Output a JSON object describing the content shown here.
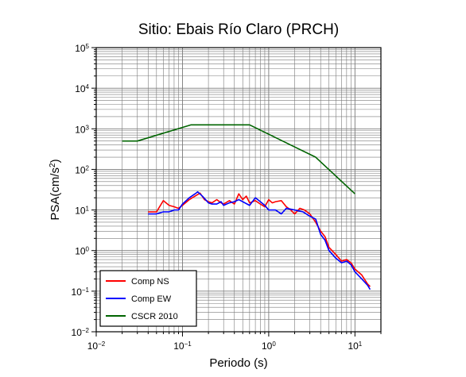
{
  "chart_data": {
    "type": "line",
    "title": "Sitio: Ebais Río Claro (PRCH)",
    "xlabel": "Periodo (s)",
    "ylabel_main": "PSA(cm/s",
    "ylabel_sup": "2",
    "ylabel_close": ")",
    "xscale": "log",
    "yscale": "log",
    "xlim": [
      0.01,
      20
    ],
    "ylim": [
      0.01,
      100000
    ],
    "grid": true,
    "legend_position": "bottom-left",
    "x_ticks": [
      {
        "base": "10",
        "exp": "−2",
        "value": 0.01
      },
      {
        "base": "10",
        "exp": "−1",
        "value": 0.1
      },
      {
        "base": "10",
        "exp": "0",
        "value": 1
      },
      {
        "base": "10",
        "exp": "1",
        "value": 10
      }
    ],
    "y_ticks": [
      {
        "base": "10",
        "exp": "−2",
        "value": 0.01
      },
      {
        "base": "10",
        "exp": "−1",
        "value": 0.1
      },
      {
        "base": "10",
        "exp": "0",
        "value": 1
      },
      {
        "base": "10",
        "exp": "1",
        "value": 10
      },
      {
        "base": "10",
        "exp": "2",
        "value": 100
      },
      {
        "base": "10",
        "exp": "3",
        "value": 1000
      },
      {
        "base": "10",
        "exp": "4",
        "value": 10000
      },
      {
        "base": "10",
        "exp": "5",
        "value": 100000
      }
    ],
    "series": [
      {
        "name": "Comp NS",
        "color": "#ff0000",
        "points": [
          [
            0.04,
            9
          ],
          [
            0.05,
            9
          ],
          [
            0.06,
            17
          ],
          [
            0.07,
            13
          ],
          [
            0.08,
            12
          ],
          [
            0.09,
            11
          ],
          [
            0.1,
            13
          ],
          [
            0.12,
            18
          ],
          [
            0.14,
            22
          ],
          [
            0.16,
            26
          ],
          [
            0.18,
            18
          ],
          [
            0.2,
            16
          ],
          [
            0.22,
            15
          ],
          [
            0.25,
            18
          ],
          [
            0.28,
            15
          ],
          [
            0.3,
            14
          ],
          [
            0.35,
            17
          ],
          [
            0.4,
            14
          ],
          [
            0.45,
            25
          ],
          [
            0.5,
            18
          ],
          [
            0.55,
            22
          ],
          [
            0.6,
            15
          ],
          [
            0.7,
            17
          ],
          [
            0.8,
            14
          ],
          [
            0.9,
            12
          ],
          [
            1.0,
            18
          ],
          [
            1.1,
            15
          ],
          [
            1.2,
            16
          ],
          [
            1.4,
            17
          ],
          [
            1.6,
            12
          ],
          [
            1.8,
            10
          ],
          [
            2.0,
            8
          ],
          [
            2.3,
            11
          ],
          [
            2.6,
            10
          ],
          [
            3.0,
            8
          ],
          [
            3.5,
            5
          ],
          [
            4.0,
            3
          ],
          [
            4.5,
            2.2
          ],
          [
            5.0,
            1.2
          ],
          [
            6.0,
            0.8
          ],
          [
            7.0,
            0.55
          ],
          [
            8.0,
            0.6
          ],
          [
            9.0,
            0.5
          ],
          [
            10,
            0.35
          ],
          [
            12,
            0.25
          ],
          [
            14,
            0.15
          ],
          [
            15,
            0.13
          ]
        ]
      },
      {
        "name": "Comp EW",
        "color": "#0000ff",
        "points": [
          [
            0.04,
            8
          ],
          [
            0.05,
            8
          ],
          [
            0.06,
            9
          ],
          [
            0.07,
            9
          ],
          [
            0.08,
            10
          ],
          [
            0.09,
            10
          ],
          [
            0.1,
            14
          ],
          [
            0.12,
            20
          ],
          [
            0.14,
            25
          ],
          [
            0.15,
            28
          ],
          [
            0.17,
            22
          ],
          [
            0.2,
            15
          ],
          [
            0.22,
            14
          ],
          [
            0.25,
            14
          ],
          [
            0.28,
            16
          ],
          [
            0.3,
            13
          ],
          [
            0.35,
            15
          ],
          [
            0.4,
            16
          ],
          [
            0.45,
            18
          ],
          [
            0.5,
            16
          ],
          [
            0.6,
            13
          ],
          [
            0.7,
            20
          ],
          [
            0.8,
            16
          ],
          [
            0.9,
            13
          ],
          [
            1.0,
            10
          ],
          [
            1.2,
            10
          ],
          [
            1.4,
            8
          ],
          [
            1.6,
            11
          ],
          [
            2.0,
            10
          ],
          [
            2.5,
            9
          ],
          [
            3.0,
            7
          ],
          [
            3.5,
            6
          ],
          [
            4.0,
            2.5
          ],
          [
            4.5,
            1.8
          ],
          [
            5.0,
            1.0
          ],
          [
            6.0,
            0.65
          ],
          [
            7.0,
            0.5
          ],
          [
            8.0,
            0.55
          ],
          [
            9.0,
            0.45
          ],
          [
            10,
            0.3
          ],
          [
            12,
            0.2
          ],
          [
            14,
            0.14
          ],
          [
            15,
            0.11
          ]
        ]
      },
      {
        "name": "CSCR 2010",
        "color": "#006400",
        "points": [
          [
            0.02,
            500
          ],
          [
            0.03,
            500
          ],
          [
            0.125,
            1250
          ],
          [
            0.6,
            1250
          ],
          [
            3.5,
            200
          ],
          [
            10,
            25
          ]
        ]
      }
    ]
  }
}
